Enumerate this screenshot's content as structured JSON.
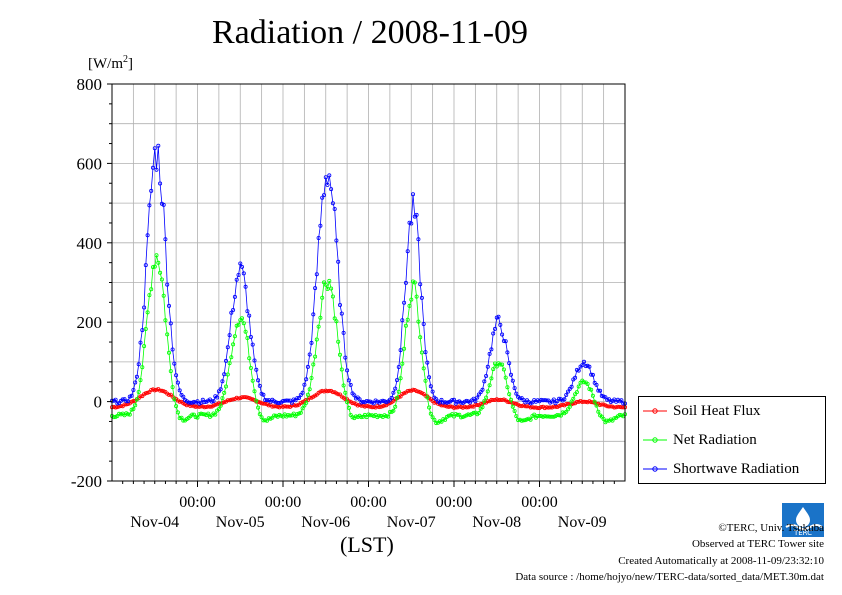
{
  "chart_data": {
    "type": "line",
    "title": "Radiation / 2008-11-09",
    "ylabel_unit": "[W/m",
    "ylabel_unit_sup": "2",
    "ylabel_unit_close": "]",
    "xlabel": "(LST)",
    "ylim": [
      -200,
      800
    ],
    "yticks": [
      -200,
      0,
      200,
      400,
      600,
      800
    ],
    "xlim_hours": [
      0,
      144
    ],
    "xticks_time": [
      "00:00",
      "00:00",
      "00:00",
      "00:00",
      "00:00"
    ],
    "xticks_day": [
      "Nov-04",
      "Nov-05",
      "Nov-06",
      "Nov-07",
      "Nov-08",
      "Nov-09"
    ],
    "grid": true,
    "legend_position": "bottom-right",
    "series": [
      {
        "name": "Soil Heat Flux",
        "color": "#ff0000",
        "peaks": [
          {
            "center": 12.5,
            "peak": 30,
            "width": 4.5
          },
          {
            "center": 36.5,
            "peak": 10,
            "width": 4.5
          },
          {
            "center": 60.5,
            "peak": 28,
            "width": 4.5
          },
          {
            "center": 84.5,
            "peak": 28,
            "width": 4.0
          },
          {
            "center": 108.5,
            "peak": 5,
            "width": 4.0
          },
          {
            "center": 132.5,
            "peak": 0,
            "width": 4.0
          }
        ],
        "baseline_night": -15
      },
      {
        "name": "Net Radiation",
        "color": "#00ff00",
        "peaks": [
          {
            "center": 12.5,
            "peak": 370,
            "width": 2.6
          },
          {
            "center": 36.0,
            "peak": 215,
            "width": 2.6
          },
          {
            "center": 60.5,
            "peak": 310,
            "width": 2.8
          },
          {
            "center": 84.5,
            "peak": 290,
            "width": 2.2
          },
          {
            "center": 108.5,
            "peak": 100,
            "width": 2.4
          },
          {
            "center": 132.5,
            "peak": 50,
            "width": 2.6
          }
        ],
        "baseline_night": -35
      },
      {
        "name": "Shortwave Radiation",
        "color": "#0000ff",
        "peaks": [
          {
            "center": 12.5,
            "peak": 630,
            "width": 2.6
          },
          {
            "center": 36.0,
            "peak": 330,
            "width": 2.6
          },
          {
            "center": 60.5,
            "peak": 580,
            "width": 2.8
          },
          {
            "center": 84.5,
            "peak": 480,
            "width": 2.2
          },
          {
            "center": 108.5,
            "peak": 200,
            "width": 2.4
          },
          {
            "center": 132.5,
            "peak": 100,
            "width": 2.6
          }
        ],
        "baseline_night": 0
      }
    ]
  },
  "footer": {
    "copyright": "©TERC, Univ. Tsukuba",
    "observed": "Observed at TERC Tower site",
    "created": "Created Automatically at 2008-11-09/23:32:10",
    "source": "Data source : /home/hojyo/new/TERC-data/sorted_data/MET.30m.dat"
  },
  "logo_text": "TERC"
}
